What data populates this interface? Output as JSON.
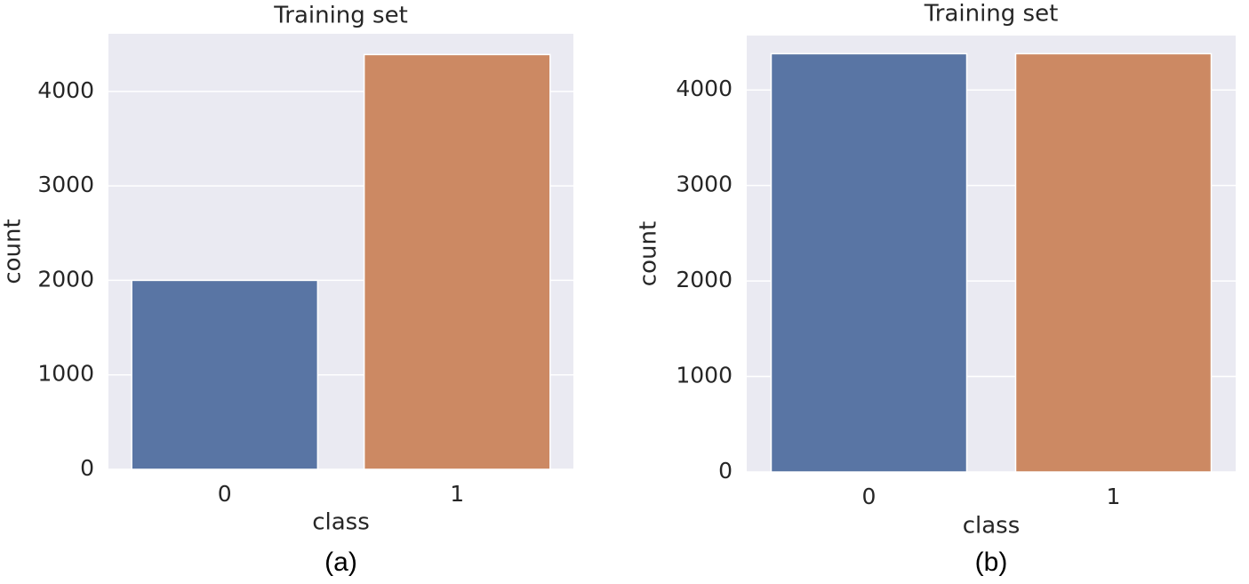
{
  "chart_data": [
    {
      "type": "bar",
      "title": "Training set",
      "x_label": "class",
      "y_label": "count",
      "caption": "(a)",
      "categories": [
        "0",
        "1"
      ],
      "values": [
        2000,
        4390
      ],
      "colors": [
        "#5975a4",
        "#cc8963"
      ],
      "ylim": [
        0,
        4610
      ],
      "yticks": [
        0,
        1000,
        2000,
        3000,
        4000
      ],
      "grid": true,
      "background": "#eaeaf2"
    },
    {
      "type": "bar",
      "title": "Training set",
      "x_label": "class",
      "y_label": "count",
      "caption": "(b)",
      "categories": [
        "0",
        "1"
      ],
      "values": [
        4380,
        4380
      ],
      "colors": [
        "#5975a4",
        "#cc8963"
      ],
      "ylim": [
        0,
        4570
      ],
      "yticks": [
        0,
        1000,
        2000,
        3000,
        4000
      ],
      "grid": true,
      "background": "#eaeaf2"
    }
  ]
}
